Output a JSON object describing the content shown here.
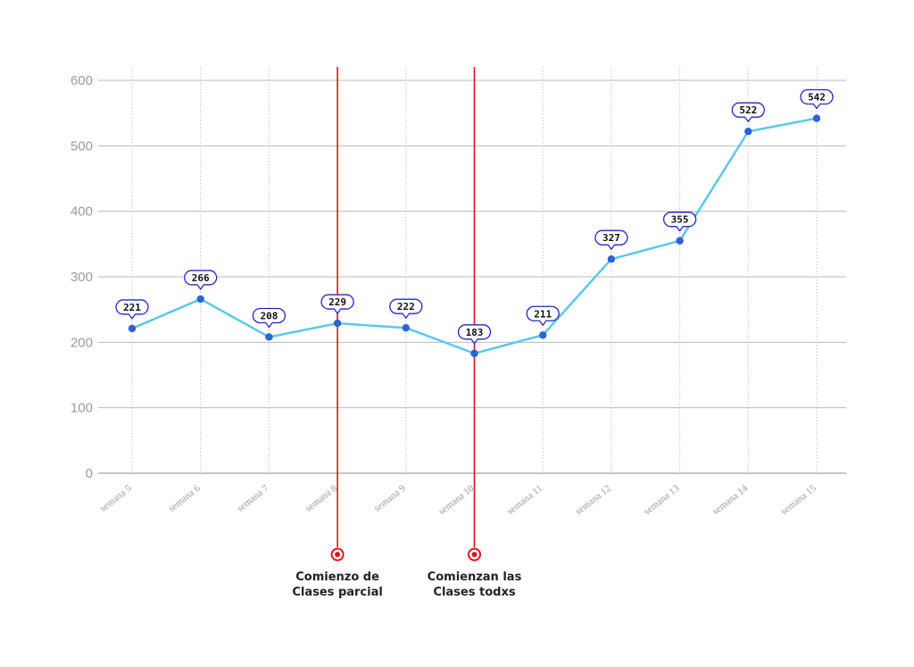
{
  "chart_data": {
    "type": "line",
    "title": "",
    "xlabel": "",
    "ylabel": "",
    "categories": [
      "semana 5",
      "semana 6",
      "semana 7",
      "semana 8",
      "semana 9",
      "semana 10",
      "semana 11",
      "semana 12",
      "semana 13",
      "semana 14",
      "semana 15"
    ],
    "series": [
      {
        "values": [
          221,
          266,
          208,
          229,
          222,
          183,
          211,
          327,
          355,
          522,
          542
        ]
      }
    ],
    "ylim": [
      0,
      600
    ],
    "yticks": [
      0,
      100,
      200,
      300,
      400,
      500,
      600
    ],
    "grid": true,
    "annotations": [
      {
        "x": "semana 8",
        "lines": [
          "Comienzo de",
          "Clases parcial"
        ]
      },
      {
        "x": "semana 10",
        "lines": [
          "Comienzan las",
          "Clases todxs"
        ]
      }
    ],
    "colors": {
      "line": "#5bc8ec",
      "point": "#2c62d4",
      "label_border": "#2424c8",
      "annotation": "#e3121b",
      "grid": "#b8b8b8",
      "axis_text": "#9a9a9a"
    }
  }
}
